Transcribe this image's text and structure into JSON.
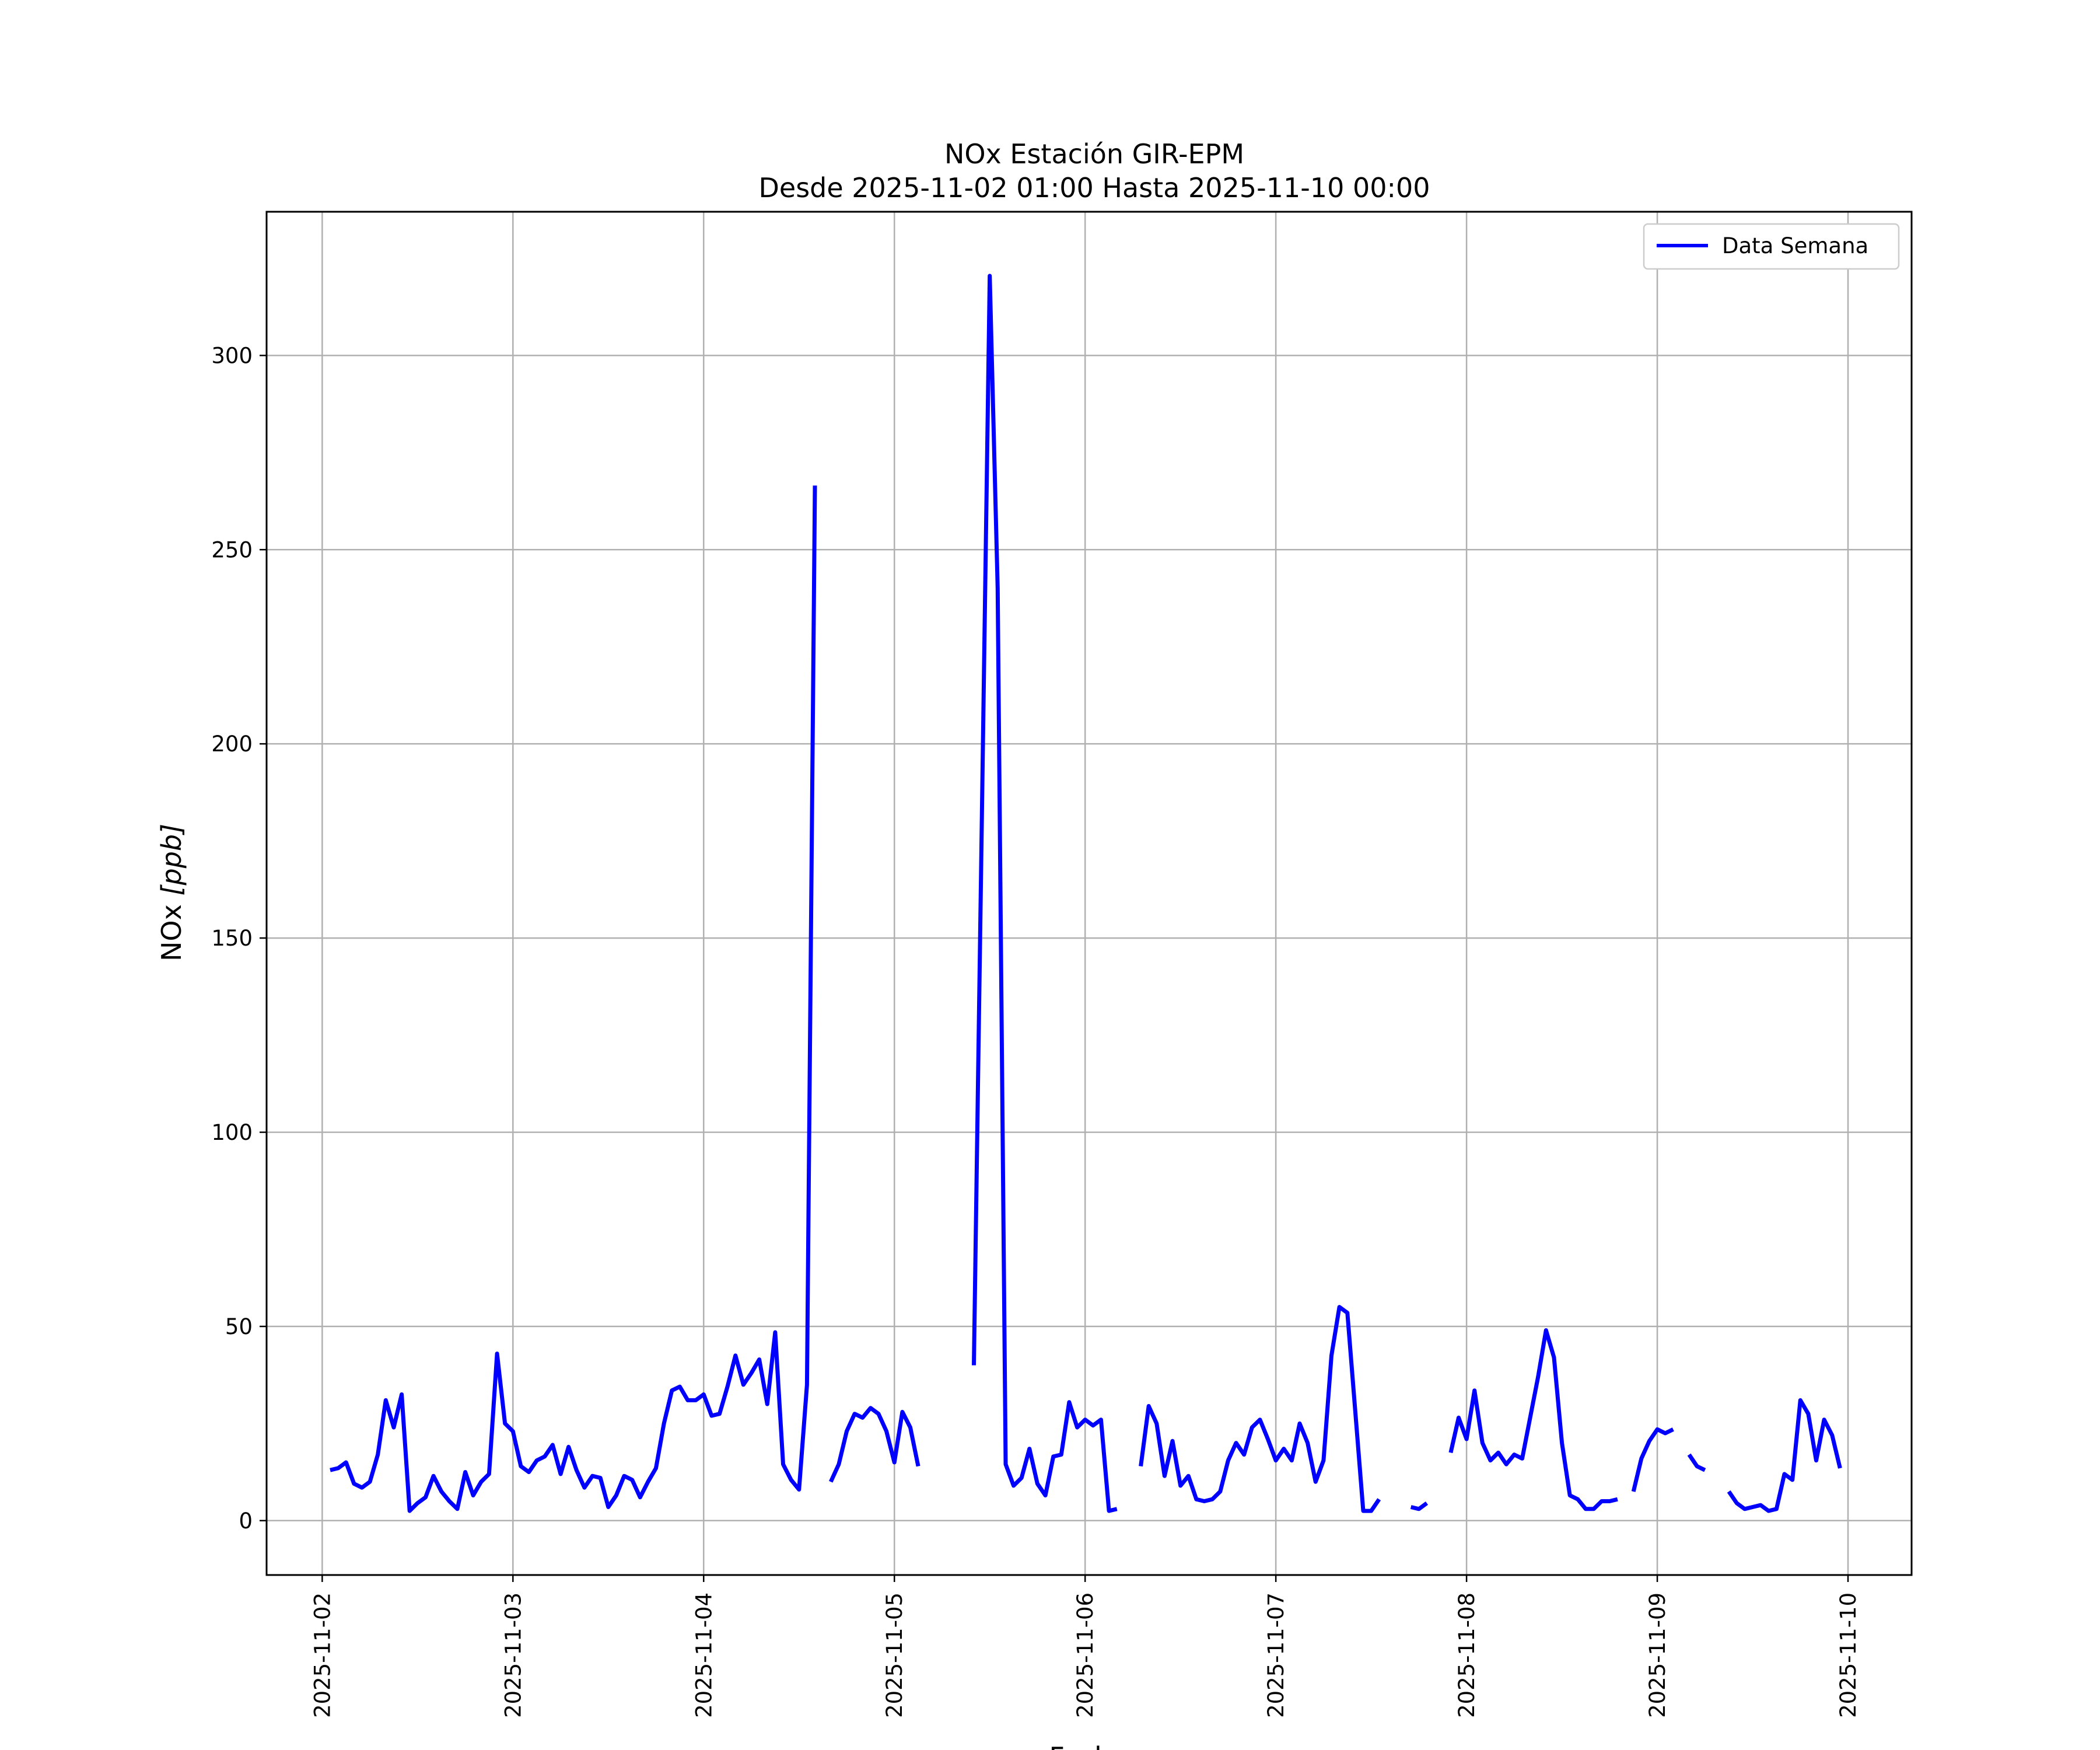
{
  "chart_data": {
    "type": "line",
    "title": "NOx Estación GIR-EPM",
    "subtitle": "Desde 2025-11-02 01:00 Hasta 2025-11-10 00:00",
    "xlabel": "Fecha",
    "ylabel": "NOx [ppb]",
    "ylabel_main": "NOx ",
    "ylabel_unit": "[ppb]",
    "x_axis_type": "datetime",
    "xlim": [
      "2025-11-01 17:00",
      "2025-11-10 08:00"
    ],
    "ylim": [
      -14,
      337
    ],
    "x_ticks": [
      "2025-11-02",
      "2025-11-03",
      "2025-11-04",
      "2025-11-05",
      "2025-11-06",
      "2025-11-07",
      "2025-11-08",
      "2025-11-09",
      "2025-11-10"
    ],
    "y_ticks": [
      0,
      50,
      100,
      150,
      200,
      250,
      300
    ],
    "grid": true,
    "legend_position": "top-right",
    "series": [
      {
        "name": "Data Semana",
        "color": "#0000ff",
        "points": [
          [
            "2025-11-02 01:00",
            13
          ],
          [
            "2025-11-02 02:00",
            13.5
          ],
          [
            "2025-11-02 03:00",
            15
          ],
          [
            "2025-11-02 04:00",
            9.5
          ],
          [
            "2025-11-02 05:00",
            8.5
          ],
          [
            "2025-11-02 06:00",
            10
          ],
          [
            "2025-11-02 07:00",
            17
          ],
          [
            "2025-11-02 08:00",
            31
          ],
          [
            "2025-11-02 09:00",
            24
          ],
          [
            "2025-11-02 10:00",
            32.5
          ],
          [
            "2025-11-02 11:00",
            2.5
          ],
          [
            "2025-11-02 12:00",
            4.5
          ],
          [
            "2025-11-02 13:00",
            6
          ],
          [
            "2025-11-02 14:00",
            11.5
          ],
          [
            "2025-11-02 15:00",
            7.5
          ],
          [
            "2025-11-02 16:00",
            5
          ],
          [
            "2025-11-02 17:00",
            3
          ],
          [
            "2025-11-02 18:00",
            12.5
          ],
          [
            "2025-11-02 19:00",
            6.5
          ],
          [
            "2025-11-02 20:00",
            10
          ],
          [
            "2025-11-02 21:00",
            12
          ],
          [
            "2025-11-02 22:00",
            43
          ],
          [
            "2025-11-02 23:00",
            25
          ],
          [
            "2025-11-03 00:00",
            23
          ],
          [
            "2025-11-03 01:00",
            14
          ],
          [
            "2025-11-03 02:00",
            12.5
          ],
          [
            "2025-11-03 03:00",
            15.5
          ],
          [
            "2025-11-03 04:00",
            16.5
          ],
          [
            "2025-11-03 05:00",
            19.5
          ],
          [
            "2025-11-03 06:00",
            12
          ],
          [
            "2025-11-03 07:00",
            19
          ],
          [
            "2025-11-03 08:00",
            13
          ],
          [
            "2025-11-03 09:00",
            8.5
          ],
          [
            "2025-11-03 10:00",
            11.5
          ],
          [
            "2025-11-03 11:00",
            11
          ],
          [
            "2025-11-03 12:00",
            3.5
          ],
          [
            "2025-11-03 13:00",
            6.5
          ],
          [
            "2025-11-03 14:00",
            11.5
          ],
          [
            "2025-11-03 15:00",
            10.5
          ],
          [
            "2025-11-03 16:00",
            6
          ],
          [
            "2025-11-03 17:00",
            10
          ],
          [
            "2025-11-03 18:00",
            13.5
          ],
          [
            "2025-11-03 19:00",
            25
          ],
          [
            "2025-11-03 20:00",
            33.5
          ],
          [
            "2025-11-03 21:00",
            34.5
          ],
          [
            "2025-11-03 22:00",
            31
          ],
          [
            "2025-11-03 23:00",
            31
          ],
          [
            "2025-11-04 00:00",
            32.5
          ],
          [
            "2025-11-04 01:00",
            27
          ],
          [
            "2025-11-04 02:00",
            27.5
          ],
          [
            "2025-11-04 03:00",
            34.5
          ],
          [
            "2025-11-04 04:00",
            42.5
          ],
          [
            "2025-11-04 05:00",
            35
          ],
          [
            "2025-11-04 06:00",
            38
          ],
          [
            "2025-11-04 07:00",
            41.5
          ],
          [
            "2025-11-04 08:00",
            30
          ],
          [
            "2025-11-04 09:00",
            48.5
          ],
          [
            "2025-11-04 10:00",
            14.5
          ],
          [
            "2025-11-04 11:00",
            10.5
          ],
          [
            "2025-11-04 12:00",
            8
          ],
          [
            "2025-11-04 13:00",
            35
          ],
          [
            "2025-11-04 14:00",
            266.5
          ],
          [
            "2025-11-04 15:00",
            null
          ],
          [
            "2025-11-04 16:00",
            10
          ],
          [
            "2025-11-04 17:00",
            14.5
          ],
          [
            "2025-11-04 18:00",
            23
          ],
          [
            "2025-11-04 19:00",
            27.5
          ],
          [
            "2025-11-04 20:00",
            26.5
          ],
          [
            "2025-11-04 21:00",
            29
          ],
          [
            "2025-11-04 22:00",
            27.5
          ],
          [
            "2025-11-04 23:00",
            23
          ],
          [
            "2025-11-05 00:00",
            15
          ],
          [
            "2025-11-05 01:00",
            28
          ],
          [
            "2025-11-05 02:00",
            24
          ],
          [
            "2025-11-05 03:00",
            14
          ],
          [
            "2025-11-05 04:00",
            null
          ],
          [
            "2025-11-05 05:00",
            null
          ],
          [
            "2025-11-05 06:00",
            null
          ],
          [
            "2025-11-05 07:00",
            null
          ],
          [
            "2025-11-05 08:00",
            null
          ],
          [
            "2025-11-05 09:00",
            null
          ],
          [
            "2025-11-05 10:00",
            40
          ],
          [
            "2025-11-05 11:00",
            180
          ],
          [
            "2025-11-05 12:00",
            320.5
          ],
          [
            "2025-11-05 13:00",
            240
          ],
          [
            "2025-11-05 14:00",
            14.5
          ],
          [
            "2025-11-05 15:00",
            9
          ],
          [
            "2025-11-05 16:00",
            11
          ],
          [
            "2025-11-05 17:00",
            18.5
          ],
          [
            "2025-11-05 18:00",
            9.5
          ],
          [
            "2025-11-05 19:00",
            6.5
          ],
          [
            "2025-11-05 20:00",
            16.5
          ],
          [
            "2025-11-05 21:00",
            17
          ],
          [
            "2025-11-05 22:00",
            30.5
          ],
          [
            "2025-11-05 23:00",
            24
          ],
          [
            "2025-11-06 00:00",
            26
          ],
          [
            "2025-11-06 01:00",
            24.5
          ],
          [
            "2025-11-06 02:00",
            26
          ],
          [
            "2025-11-06 03:00",
            2.5
          ],
          [
            "2025-11-06 04:00",
            3
          ],
          [
            "2025-11-06 05:00",
            null
          ],
          [
            "2025-11-06 06:00",
            null
          ],
          [
            "2025-11-06 07:00",
            14
          ],
          [
            "2025-11-06 08:00",
            29.5
          ],
          [
            "2025-11-06 09:00",
            25
          ],
          [
            "2025-11-06 10:00",
            11.5
          ],
          [
            "2025-11-06 11:00",
            20.5
          ],
          [
            "2025-11-06 12:00",
            9
          ],
          [
            "2025-11-06 13:00",
            11.5
          ],
          [
            "2025-11-06 14:00",
            5.5
          ],
          [
            "2025-11-06 15:00",
            5
          ],
          [
            "2025-11-06 16:00",
            5.5
          ],
          [
            "2025-11-06 17:00",
            7.5
          ],
          [
            "2025-11-06 18:00",
            15.5
          ],
          [
            "2025-11-06 19:00",
            20
          ],
          [
            "2025-11-06 20:00",
            17
          ],
          [
            "2025-11-06 21:00",
            24
          ],
          [
            "2025-11-06 22:00",
            26
          ],
          [
            "2025-11-06 23:00",
            21
          ],
          [
            "2025-11-07 00:00",
            15.5
          ],
          [
            "2025-11-07 01:00",
            18.5
          ],
          [
            "2025-11-07 02:00",
            15.5
          ],
          [
            "2025-11-07 03:00",
            25
          ],
          [
            "2025-11-07 04:00",
            20
          ],
          [
            "2025-11-07 05:00",
            10
          ],
          [
            "2025-11-07 06:00",
            15.5
          ],
          [
            "2025-11-07 07:00",
            42.5
          ],
          [
            "2025-11-07 08:00",
            55
          ],
          [
            "2025-11-07 09:00",
            53.5
          ],
          [
            "2025-11-07 10:00",
            28
          ],
          [
            "2025-11-07 11:00",
            2.5
          ],
          [
            "2025-11-07 12:00",
            2.5
          ],
          [
            "2025-11-07 13:00",
            5.5
          ],
          [
            "2025-11-07 14:00",
            null
          ],
          [
            "2025-11-07 15:00",
            null
          ],
          [
            "2025-11-07 16:00",
            null
          ],
          [
            "2025-11-07 17:00",
            3.5
          ],
          [
            "2025-11-07 18:00",
            3
          ],
          [
            "2025-11-07 19:00",
            4.5
          ],
          [
            "2025-11-07 20:00",
            null
          ],
          [
            "2025-11-07 21:00",
            null
          ],
          [
            "2025-11-07 22:00",
            17.5
          ],
          [
            "2025-11-07 23:00",
            26.5
          ],
          [
            "2025-11-08 00:00",
            21
          ],
          [
            "2025-11-08 01:00",
            33.5
          ],
          [
            "2025-11-08 02:00",
            20
          ],
          [
            "2025-11-08 03:00",
            15.5
          ],
          [
            "2025-11-08 04:00",
            17.5
          ],
          [
            "2025-11-08 05:00",
            14.5
          ],
          [
            "2025-11-08 06:00",
            17
          ],
          [
            "2025-11-08 07:00",
            16
          ],
          [
            "2025-11-08 08:00",
            26.5
          ],
          [
            "2025-11-08 09:00",
            37
          ],
          [
            "2025-11-08 10:00",
            49
          ],
          [
            "2025-11-08 11:00",
            42
          ],
          [
            "2025-11-08 12:00",
            20
          ],
          [
            "2025-11-08 13:00",
            6.5
          ],
          [
            "2025-11-08 14:00",
            5.5
          ],
          [
            "2025-11-08 15:00",
            3
          ],
          [
            "2025-11-08 16:00",
            3
          ],
          [
            "2025-11-08 17:00",
            5
          ],
          [
            "2025-11-08 18:00",
            5
          ],
          [
            "2025-11-08 19:00",
            5.5
          ],
          [
            "2025-11-08 20:00",
            null
          ],
          [
            "2025-11-08 21:00",
            7.5
          ],
          [
            "2025-11-08 22:00",
            16
          ],
          [
            "2025-11-08 23:00",
            20.5
          ],
          [
            "2025-11-09 00:00",
            23.5
          ],
          [
            "2025-11-09 01:00",
            22.5
          ],
          [
            "2025-11-09 02:00",
            23.5
          ],
          [
            "2025-11-09 03:00",
            null
          ],
          [
            "2025-11-09 04:00",
            17
          ],
          [
            "2025-11-09 05:00",
            14
          ],
          [
            "2025-11-09 06:00",
            13
          ],
          [
            "2025-11-09 07:00",
            null
          ],
          [
            "2025-11-09 08:00",
            null
          ],
          [
            "2025-11-09 09:00",
            7.5
          ],
          [
            "2025-11-09 10:00",
            4.5
          ],
          [
            "2025-11-09 11:00",
            3
          ],
          [
            "2025-11-09 12:00",
            3.5
          ],
          [
            "2025-11-09 13:00",
            4
          ],
          [
            "2025-11-09 14:00",
            2.5
          ],
          [
            "2025-11-09 15:00",
            3
          ],
          [
            "2025-11-09 16:00",
            12
          ],
          [
            "2025-11-09 17:00",
            10.5
          ],
          [
            "2025-11-09 18:00",
            31
          ],
          [
            "2025-11-09 19:00",
            27.5
          ],
          [
            "2025-11-09 20:00",
            15.5
          ],
          [
            "2025-11-09 21:00",
            26
          ],
          [
            "2025-11-09 22:00",
            22
          ],
          [
            "2025-11-09 23:00",
            13.5
          ]
        ]
      }
    ]
  }
}
